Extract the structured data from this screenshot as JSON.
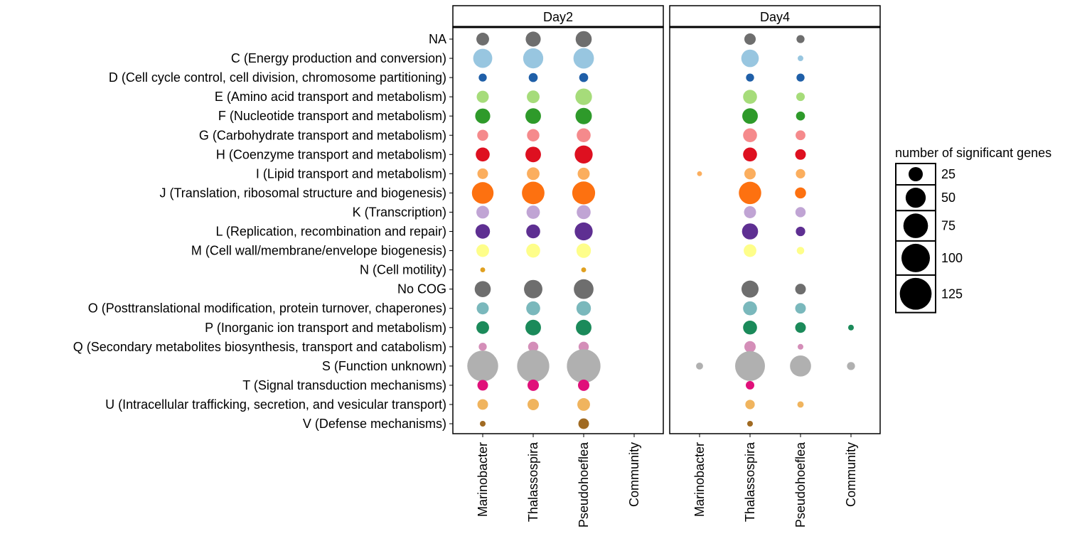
{
  "chart_data": {
    "type": "scatter",
    "subtype": "bubble",
    "facets": [
      "Day2",
      "Day4"
    ],
    "x_categories": [
      "Marinobacter",
      "Thalassospira",
      "Pseudohoeflea",
      "Community"
    ],
    "y_categories": [
      "NA",
      "C (Energy production and conversion)",
      "D (Cell cycle control, cell division, chromosome partitioning)",
      "E (Amino acid transport and metabolism)",
      "F (Nucleotide transport and metabolism)",
      "G (Carbohydrate transport and metabolism)",
      "H (Coenzyme transport and metabolism)",
      "I (Lipid transport and metabolism)",
      "J (Translation,  ribosomal structure and biogenesis)",
      "K (Transcription)",
      "L (Replication, recombination and repair)",
      "M (Cell wall/membrane/envelope biogenesis)",
      "N (Cell motility)",
      "No COG",
      "O (Posttranslational modification, protein turnover, chaperones)",
      "P (Inorganic ion transport and metabolism)",
      "Q (Secondary metabolites biosynthesis, transport and catabolism)",
      "S (Function unknown)",
      "T (Signal transduction mechanisms)",
      "U (Intracellular trafficking, secretion, and vesicular transport)",
      "V (Defense mechanisms)"
    ],
    "category_colors": [
      "#6e6e6e",
      "#98c6e0",
      "#1f5fa8",
      "#a6dc7a",
      "#2e9a2a",
      "#f58a8c",
      "#de1020",
      "#fbae5e",
      "#fd7110",
      "#c0a4d4",
      "#5e2f92",
      "#fefe8a",
      "#e0a020",
      "#6e6e6e",
      "#7ab8bc",
      "#1b8a5a",
      "#d48eb8",
      "#b0b0b0",
      "#e0107a",
      "#f0b45e",
      "#a06a22"
    ],
    "size_legend": {
      "title": "number of significant genes",
      "breaks": [
        25,
        50,
        75,
        100,
        125
      ]
    },
    "points": [
      {
        "facet": "Day2",
        "x": "Marinobacter",
        "y": "NA",
        "size": 20
      },
      {
        "facet": "Day2",
        "x": "Thalassospira",
        "y": "NA",
        "size": 28
      },
      {
        "facet": "Day2",
        "x": "Pseudohoeflea",
        "y": "NA",
        "size": 32
      },
      {
        "facet": "Day2",
        "x": "Marinobacter",
        "y": "C (Energy production and conversion)",
        "size": 45
      },
      {
        "facet": "Day2",
        "x": "Thalassospira",
        "y": "C (Energy production and conversion)",
        "size": 50
      },
      {
        "facet": "Day2",
        "x": "Pseudohoeflea",
        "y": "C (Energy production and conversion)",
        "size": 52
      },
      {
        "facet": "Day2",
        "x": "Marinobacter",
        "y": "D (Cell cycle control, cell division, chromosome partitioning)",
        "size": 8
      },
      {
        "facet": "Day2",
        "x": "Thalassospira",
        "y": "D (Cell cycle control, cell division, chromosome partitioning)",
        "size": 10
      },
      {
        "facet": "Day2",
        "x": "Pseudohoeflea",
        "y": "D (Cell cycle control, cell division, chromosome partitioning)",
        "size": 10
      },
      {
        "facet": "Day2",
        "x": "Marinobacter",
        "y": "E (Amino acid transport and metabolism)",
        "size": 18
      },
      {
        "facet": "Day2",
        "x": "Thalassospira",
        "y": "E (Amino acid transport and metabolism)",
        "size": 20
      },
      {
        "facet": "Day2",
        "x": "Pseudohoeflea",
        "y": "E (Amino acid transport and metabolism)",
        "size": 34
      },
      {
        "facet": "Day2",
        "x": "Marinobacter",
        "y": "F (Nucleotide transport and metabolism)",
        "size": 28
      },
      {
        "facet": "Day2",
        "x": "Thalassospira",
        "y": "F (Nucleotide transport and metabolism)",
        "size": 30
      },
      {
        "facet": "Day2",
        "x": "Pseudohoeflea",
        "y": "F (Nucleotide transport and metabolism)",
        "size": 33
      },
      {
        "facet": "Day2",
        "x": "Marinobacter",
        "y": "G (Carbohydrate transport and metabolism)",
        "size": 15
      },
      {
        "facet": "Day2",
        "x": "Thalassospira",
        "y": "G (Carbohydrate transport and metabolism)",
        "size": 19
      },
      {
        "facet": "Day2",
        "x": "Pseudohoeflea",
        "y": "G (Carbohydrate transport and metabolism)",
        "size": 24
      },
      {
        "facet": "Day2",
        "x": "Marinobacter",
        "y": "H (Coenzyme transport and metabolism)",
        "size": 24
      },
      {
        "facet": "Day2",
        "x": "Thalassospira",
        "y": "H (Coenzyme transport and metabolism)",
        "size": 30
      },
      {
        "facet": "Day2",
        "x": "Pseudohoeflea",
        "y": "H (Coenzyme transport and metabolism)",
        "size": 40
      },
      {
        "facet": "Day2",
        "x": "Marinobacter",
        "y": "I (Lipid transport and metabolism)",
        "size": 14
      },
      {
        "facet": "Day2",
        "x": "Thalassospira",
        "y": "I (Lipid transport and metabolism)",
        "size": 20
      },
      {
        "facet": "Day2",
        "x": "Pseudohoeflea",
        "y": "I (Lipid transport and metabolism)",
        "size": 18
      },
      {
        "facet": "Day2",
        "x": "Marinobacter",
        "y": "J (Translation,  ribosomal structure and biogenesis)",
        "size": 58
      },
      {
        "facet": "Day2",
        "x": "Thalassospira",
        "y": "J (Translation,  ribosomal structure and biogenesis)",
        "size": 63
      },
      {
        "facet": "Day2",
        "x": "Pseudohoeflea",
        "y": "J (Translation,  ribosomal structure and biogenesis)",
        "size": 65
      },
      {
        "facet": "Day2",
        "x": "Marinobacter",
        "y": "K (Transcription)",
        "size": 20
      },
      {
        "facet": "Day2",
        "x": "Thalassospira",
        "y": "K (Transcription)",
        "size": 22
      },
      {
        "facet": "Day2",
        "x": "Pseudohoeflea",
        "y": "K (Transcription)",
        "size": 24
      },
      {
        "facet": "Day2",
        "x": "Marinobacter",
        "y": "L (Replication, recombination and repair)",
        "size": 26
      },
      {
        "facet": "Day2",
        "x": "Thalassospira",
        "y": "L (Replication, recombination and repair)",
        "size": 24
      },
      {
        "facet": "Day2",
        "x": "Pseudohoeflea",
        "y": "L (Replication, recombination and repair)",
        "size": 40
      },
      {
        "facet": "Day2",
        "x": "Marinobacter",
        "y": "M (Cell wall/membrane/envelope biogenesis)",
        "size": 20
      },
      {
        "facet": "Day2",
        "x": "Thalassospira",
        "y": "M (Cell wall/membrane/envelope biogenesis)",
        "size": 24
      },
      {
        "facet": "Day2",
        "x": "Pseudohoeflea",
        "y": "M (Cell wall/membrane/envelope biogenesis)",
        "size": 26
      },
      {
        "facet": "Day2",
        "x": "Marinobacter",
        "y": "N (Cell motility)",
        "size": 3
      },
      {
        "facet": "Day2",
        "x": "Pseudohoeflea",
        "y": "N (Cell motility)",
        "size": 3
      },
      {
        "facet": "Day2",
        "x": "Marinobacter",
        "y": "No COG",
        "size": 32
      },
      {
        "facet": "Day2",
        "x": "Thalassospira",
        "y": "No COG",
        "size": 42
      },
      {
        "facet": "Day2",
        "x": "Pseudohoeflea",
        "y": "No COG",
        "size": 48
      },
      {
        "facet": "Day2",
        "x": "Marinobacter",
        "y": "O (Posttranslational modification, protein turnover, chaperones)",
        "size": 18
      },
      {
        "facet": "Day2",
        "x": "Thalassospira",
        "y": "O (Posttranslational modification, protein turnover, chaperones)",
        "size": 24
      },
      {
        "facet": "Day2",
        "x": "Pseudohoeflea",
        "y": "O (Posttranslational modification, protein turnover, chaperones)",
        "size": 26
      },
      {
        "facet": "Day2",
        "x": "Marinobacter",
        "y": "P (Inorganic ion transport and metabolism)",
        "size": 20
      },
      {
        "facet": "Day2",
        "x": "Thalassospira",
        "y": "P (Inorganic ion transport and metabolism)",
        "size": 30
      },
      {
        "facet": "Day2",
        "x": "Pseudohoeflea",
        "y": "P (Inorganic ion transport and metabolism)",
        "size": 30
      },
      {
        "facet": "Day2",
        "x": "Marinobacter",
        "y": "Q (Secondary metabolites biosynthesis, transport and catabolism)",
        "size": 8
      },
      {
        "facet": "Day2",
        "x": "Thalassospira",
        "y": "Q (Secondary metabolites biosynthesis, transport and catabolism)",
        "size": 13
      },
      {
        "facet": "Day2",
        "x": "Pseudohoeflea",
        "y": "Q (Secondary metabolites biosynthesis, transport and catabolism)",
        "size": 13
      },
      {
        "facet": "Day2",
        "x": "Marinobacter",
        "y": "S (Function unknown)",
        "size": 118
      },
      {
        "facet": "Day2",
        "x": "Thalassospira",
        "y": "S (Function unknown)",
        "size": 128
      },
      {
        "facet": "Day2",
        "x": "Pseudohoeflea",
        "y": "S (Function unknown)",
        "size": 140
      },
      {
        "facet": "Day2",
        "x": "Marinobacter",
        "y": "T (Signal transduction mechanisms)",
        "size": 14
      },
      {
        "facet": "Day2",
        "x": "Thalassospira",
        "y": "T (Signal transduction mechanisms)",
        "size": 16
      },
      {
        "facet": "Day2",
        "x": "Pseudohoeflea",
        "y": "T (Signal transduction mechanisms)",
        "size": 16
      },
      {
        "facet": "Day2",
        "x": "Marinobacter",
        "y": "U (Intracellular trafficking, secretion, and vesicular transport)",
        "size": 14
      },
      {
        "facet": "Day2",
        "x": "Thalassospira",
        "y": "U (Intracellular trafficking, secretion, and vesicular transport)",
        "size": 16
      },
      {
        "facet": "Day2",
        "x": "Pseudohoeflea",
        "y": "U (Intracellular trafficking, secretion, and vesicular transport)",
        "size": 20
      },
      {
        "facet": "Day2",
        "x": "Marinobacter",
        "y": "V (Defense mechanisms)",
        "size": 4
      },
      {
        "facet": "Day2",
        "x": "Pseudohoeflea",
        "y": "V (Defense mechanisms)",
        "size": 14
      },
      {
        "facet": "Day4",
        "x": "Thalassospira",
        "y": "NA",
        "size": 16
      },
      {
        "facet": "Day4",
        "x": "Pseudohoeflea",
        "y": "NA",
        "size": 8
      },
      {
        "facet": "Day4",
        "x": "Thalassospira",
        "y": "C (Energy production and conversion)",
        "size": 38
      },
      {
        "facet": "Day4",
        "x": "Pseudohoeflea",
        "y": "C (Energy production and conversion)",
        "size": 4
      },
      {
        "facet": "Day4",
        "x": "Thalassospira",
        "y": "D (Cell cycle control, cell division, chromosome partitioning)",
        "size": 8
      },
      {
        "facet": "Day4",
        "x": "Pseudohoeflea",
        "y": "D (Cell cycle control, cell division, chromosome partitioning)",
        "size": 8
      },
      {
        "facet": "Day4",
        "x": "Thalassospira",
        "y": "E (Amino acid transport and metabolism)",
        "size": 24
      },
      {
        "facet": "Day4",
        "x": "Pseudohoeflea",
        "y": "E (Amino acid transport and metabolism)",
        "size": 9
      },
      {
        "facet": "Day4",
        "x": "Thalassospira",
        "y": "F (Nucleotide transport and metabolism)",
        "size": 30
      },
      {
        "facet": "Day4",
        "x": "Pseudohoeflea",
        "y": "F (Nucleotide transport and metabolism)",
        "size": 10
      },
      {
        "facet": "Day4",
        "x": "Thalassospira",
        "y": "G (Carbohydrate transport and metabolism)",
        "size": 24
      },
      {
        "facet": "Day4",
        "x": "Pseudohoeflea",
        "y": "G (Carbohydrate transport and metabolism)",
        "size": 12
      },
      {
        "facet": "Day4",
        "x": "Thalassospira",
        "y": "H (Coenzyme transport and metabolism)",
        "size": 24
      },
      {
        "facet": "Day4",
        "x": "Pseudohoeflea",
        "y": "H (Coenzyme transport and metabolism)",
        "size": 14
      },
      {
        "facet": "Day4",
        "x": "Marinobacter",
        "y": "I (Lipid transport and metabolism)",
        "size": 3
      },
      {
        "facet": "Day4",
        "x": "Thalassospira",
        "y": "I (Lipid transport and metabolism)",
        "size": 16
      },
      {
        "facet": "Day4",
        "x": "Pseudohoeflea",
        "y": "I (Lipid transport and metabolism)",
        "size": 11
      },
      {
        "facet": "Day4",
        "x": "Thalassospira",
        "y": "J (Translation,  ribosomal structure and biogenesis)",
        "size": 62
      },
      {
        "facet": "Day4",
        "x": "Pseudohoeflea",
        "y": "J (Translation,  ribosomal structure and biogenesis)",
        "size": 15
      },
      {
        "facet": "Day4",
        "x": "Thalassospira",
        "y": "K (Transcription)",
        "size": 18
      },
      {
        "facet": "Day4",
        "x": "Pseudohoeflea",
        "y": "K (Transcription)",
        "size": 13
      },
      {
        "facet": "Day4",
        "x": "Thalassospira",
        "y": "L (Replication, recombination and repair)",
        "size": 32
      },
      {
        "facet": "Day4",
        "x": "Pseudohoeflea",
        "y": "L (Replication, recombination and repair)",
        "size": 11
      },
      {
        "facet": "Day4",
        "x": "Thalassospira",
        "y": "M (Cell wall/membrane/envelope biogenesis)",
        "size": 20
      },
      {
        "facet": "Day4",
        "x": "Pseudohoeflea",
        "y": "M (Cell wall/membrane/envelope biogenesis)",
        "size": 7
      },
      {
        "facet": "Day4",
        "x": "Thalassospira",
        "y": "No COG",
        "size": 36
      },
      {
        "facet": "Day4",
        "x": "Pseudohoeflea",
        "y": "No COG",
        "size": 14
      },
      {
        "facet": "Day4",
        "x": "Thalassospira",
        "y": "O (Posttranslational modification, protein turnover, chaperones)",
        "size": 24
      },
      {
        "facet": "Day4",
        "x": "Pseudohoeflea",
        "y": "O (Posttranslational modification, protein turnover, chaperones)",
        "size": 14
      },
      {
        "facet": "Day4",
        "x": "Community",
        "y": "P (Inorganic ion transport and metabolism)",
        "size": 4
      },
      {
        "facet": "Day4",
        "x": "Thalassospira",
        "y": "P (Inorganic ion transport and metabolism)",
        "size": 24
      },
      {
        "facet": "Day4",
        "x": "Pseudohoeflea",
        "y": "P (Inorganic ion transport and metabolism)",
        "size": 14
      },
      {
        "facet": "Day4",
        "x": "Thalassospira",
        "y": "Q (Secondary metabolites biosynthesis, transport and catabolism)",
        "size": 16
      },
      {
        "facet": "Day4",
        "x": "Pseudohoeflea",
        "y": "Q (Secondary metabolites biosynthesis, transport and catabolism)",
        "size": 4
      },
      {
        "facet": "Day4",
        "x": "Marinobacter",
        "y": "S (Function unknown)",
        "size": 6
      },
      {
        "facet": "Day4",
        "x": "Thalassospira",
        "y": "S (Function unknown)",
        "size": 110
      },
      {
        "facet": "Day4",
        "x": "Pseudohoeflea",
        "y": "S (Function unknown)",
        "size": 55
      },
      {
        "facet": "Day4",
        "x": "Community",
        "y": "S (Function unknown)",
        "size": 8
      },
      {
        "facet": "Day4",
        "x": "Thalassospira",
        "y": "T (Signal transduction mechanisms)",
        "size": 9
      },
      {
        "facet": "Day4",
        "x": "Thalassospira",
        "y": "U (Intracellular trafficking, secretion, and vesicular transport)",
        "size": 11
      },
      {
        "facet": "Day4",
        "x": "Pseudohoeflea",
        "y": "U (Intracellular trafficking, secretion, and vesicular transport)",
        "size": 5
      },
      {
        "facet": "Day4",
        "x": "Thalassospira",
        "y": "V (Defense mechanisms)",
        "size": 4
      }
    ]
  }
}
